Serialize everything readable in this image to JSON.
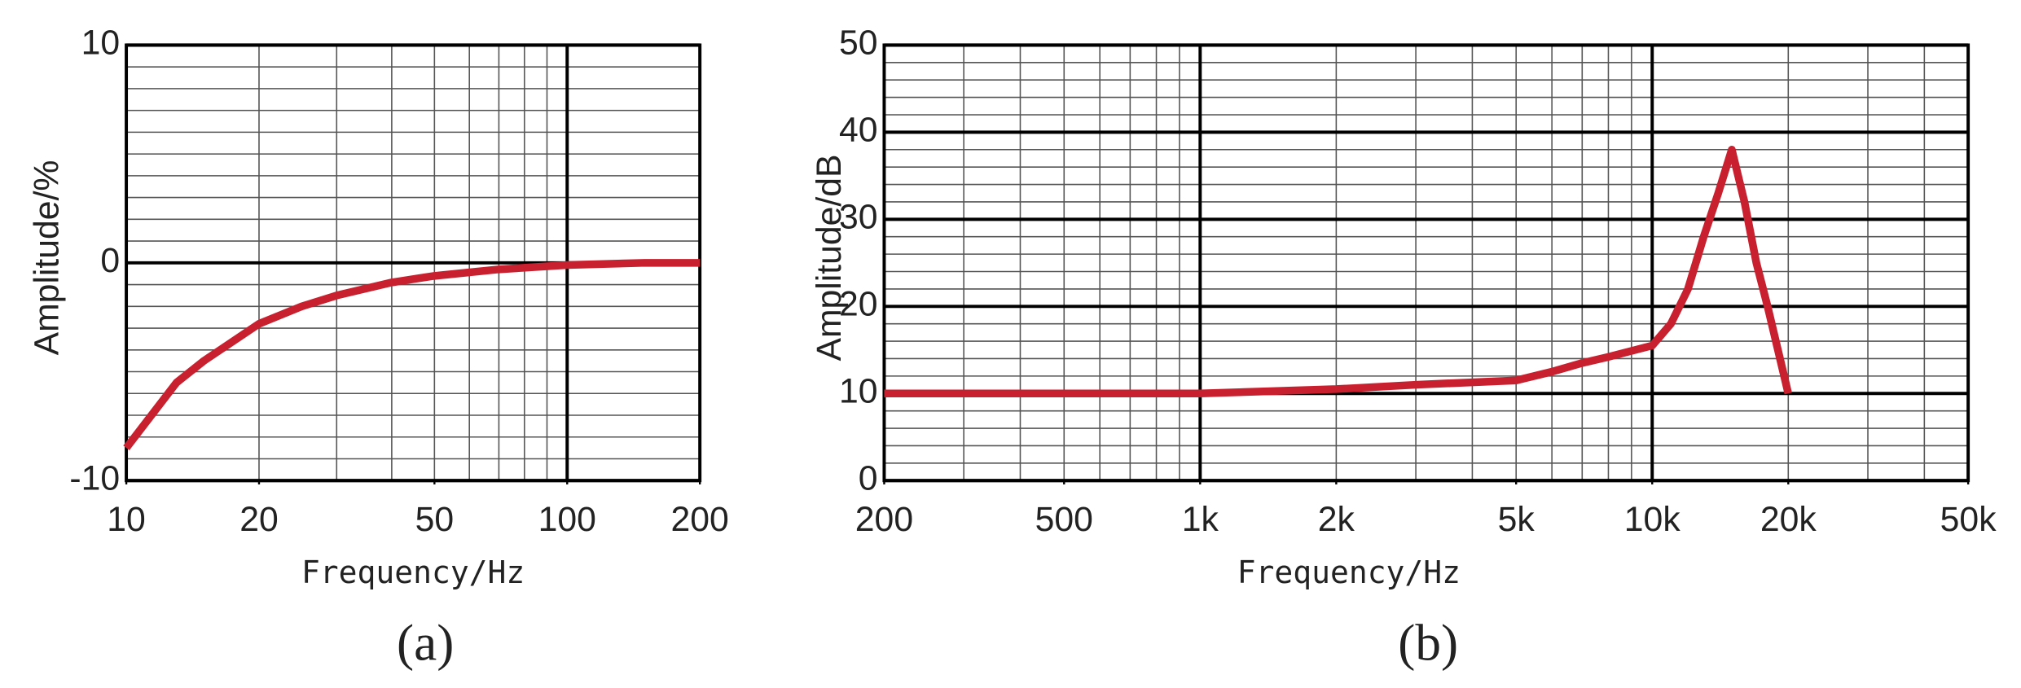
{
  "chart_data": [
    {
      "type": "line",
      "caption": "(a)",
      "x_label": "Frequency/Hz",
      "y_label": "Amplitude/%",
      "x": [
        10,
        13,
        15,
        20,
        25,
        30,
        40,
        50,
        70,
        100,
        150,
        200
      ],
      "series": [
        {
          "color": "#c8202e",
          "values": [
            -8.5,
            -5.5,
            -4.5,
            -2.8,
            -2,
            -1.5,
            -0.9,
            -0.6,
            -0.3,
            -0.1,
            0,
            0
          ]
        }
      ],
      "xlim": [
        10,
        200
      ],
      "xticks": [
        10,
        20,
        50,
        100,
        200
      ],
      "xscale": "log",
      "ylim": [
        -10,
        10
      ],
      "yticks": [
        -10,
        0,
        10
      ],
      "grid": true,
      "minor_divisions": 10
    },
    {
      "type": "line",
      "caption": "(b)",
      "x_label": "Frequency/Hz",
      "y_label": "Amplitude/dB",
      "x": [
        200,
        500,
        1000,
        2000,
        3000,
        5000,
        6000,
        7000,
        8000,
        10000,
        11000,
        12000,
        13000,
        14000,
        15000,
        16000,
        17000,
        18000,
        20000
      ],
      "series": [
        {
          "color": "#c8202e",
          "values": [
            10,
            10,
            10,
            10.5,
            11,
            11.5,
            12.5,
            13.5,
            14.2,
            15.5,
            18,
            22,
            28,
            33,
            38,
            32,
            25,
            20,
            10
          ]
        }
      ],
      "xlim": [
        200,
        50000
      ],
      "xticks": [
        200,
        500,
        {
          "value": 1000,
          "label": "1k"
        },
        {
          "value": 2000,
          "label": "2k"
        },
        {
          "value": 5000,
          "label": "5k"
        },
        {
          "value": 10000,
          "label": "10k"
        },
        {
          "value": 20000,
          "label": "20k"
        },
        {
          "value": 50000,
          "label": "50k"
        }
      ],
      "xscale": "log",
      "ylim": [
        0,
        50
      ],
      "yticks": [
        0,
        10,
        20,
        30,
        40,
        50
      ],
      "grid": true,
      "minor_divisions": 5
    }
  ]
}
